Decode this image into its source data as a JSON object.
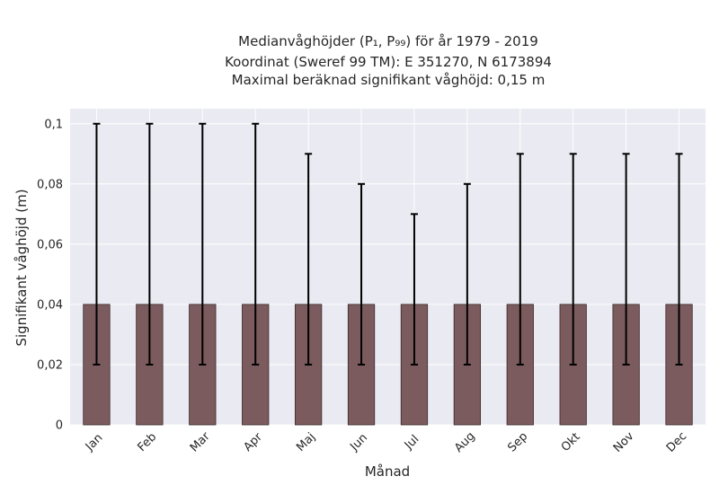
{
  "chart_data": {
    "type": "bar",
    "title_lines": [
      "Medianvåghöjder (P₁, P₉₉) för år 1979 - 2019",
      "Koordinat (Sweref 99 TM): E 351270, N 6173894",
      "Maximal beräknad signifikant våghöjd: 0,15 m"
    ],
    "xlabel": "Månad",
    "ylabel": "Signifikant våghöjd (m)",
    "categories": [
      "Jan",
      "Feb",
      "Mar",
      "Apr",
      "Maj",
      "Jun",
      "Jul",
      "Aug",
      "Sep",
      "Okt",
      "Nov",
      "Dec"
    ],
    "values": [
      0.04,
      0.04,
      0.04,
      0.04,
      0.04,
      0.04,
      0.04,
      0.04,
      0.04,
      0.04,
      0.04,
      0.04
    ],
    "p1": [
      0.02,
      0.02,
      0.02,
      0.02,
      0.02,
      0.02,
      0.02,
      0.02,
      0.02,
      0.02,
      0.02,
      0.02
    ],
    "p99": [
      0.1,
      0.1,
      0.1,
      0.1,
      0.09,
      0.08,
      0.07,
      0.08,
      0.09,
      0.09,
      0.09,
      0.09
    ],
    "ylim": [
      0,
      0.105
    ],
    "yticks": [
      0,
      0.02,
      0.04,
      0.06,
      0.08,
      0.1
    ],
    "ytick_labels": [
      "0",
      "0,02",
      "0,04",
      "0,06",
      "0,08",
      "0,1"
    ],
    "grid": true,
    "colors": {
      "bar": "#7b5b5d",
      "bar_edge": "#3a2a2b",
      "errorbar": "#000000",
      "plot_bg": "#eaeaf2",
      "grid": "#ffffff"
    }
  }
}
